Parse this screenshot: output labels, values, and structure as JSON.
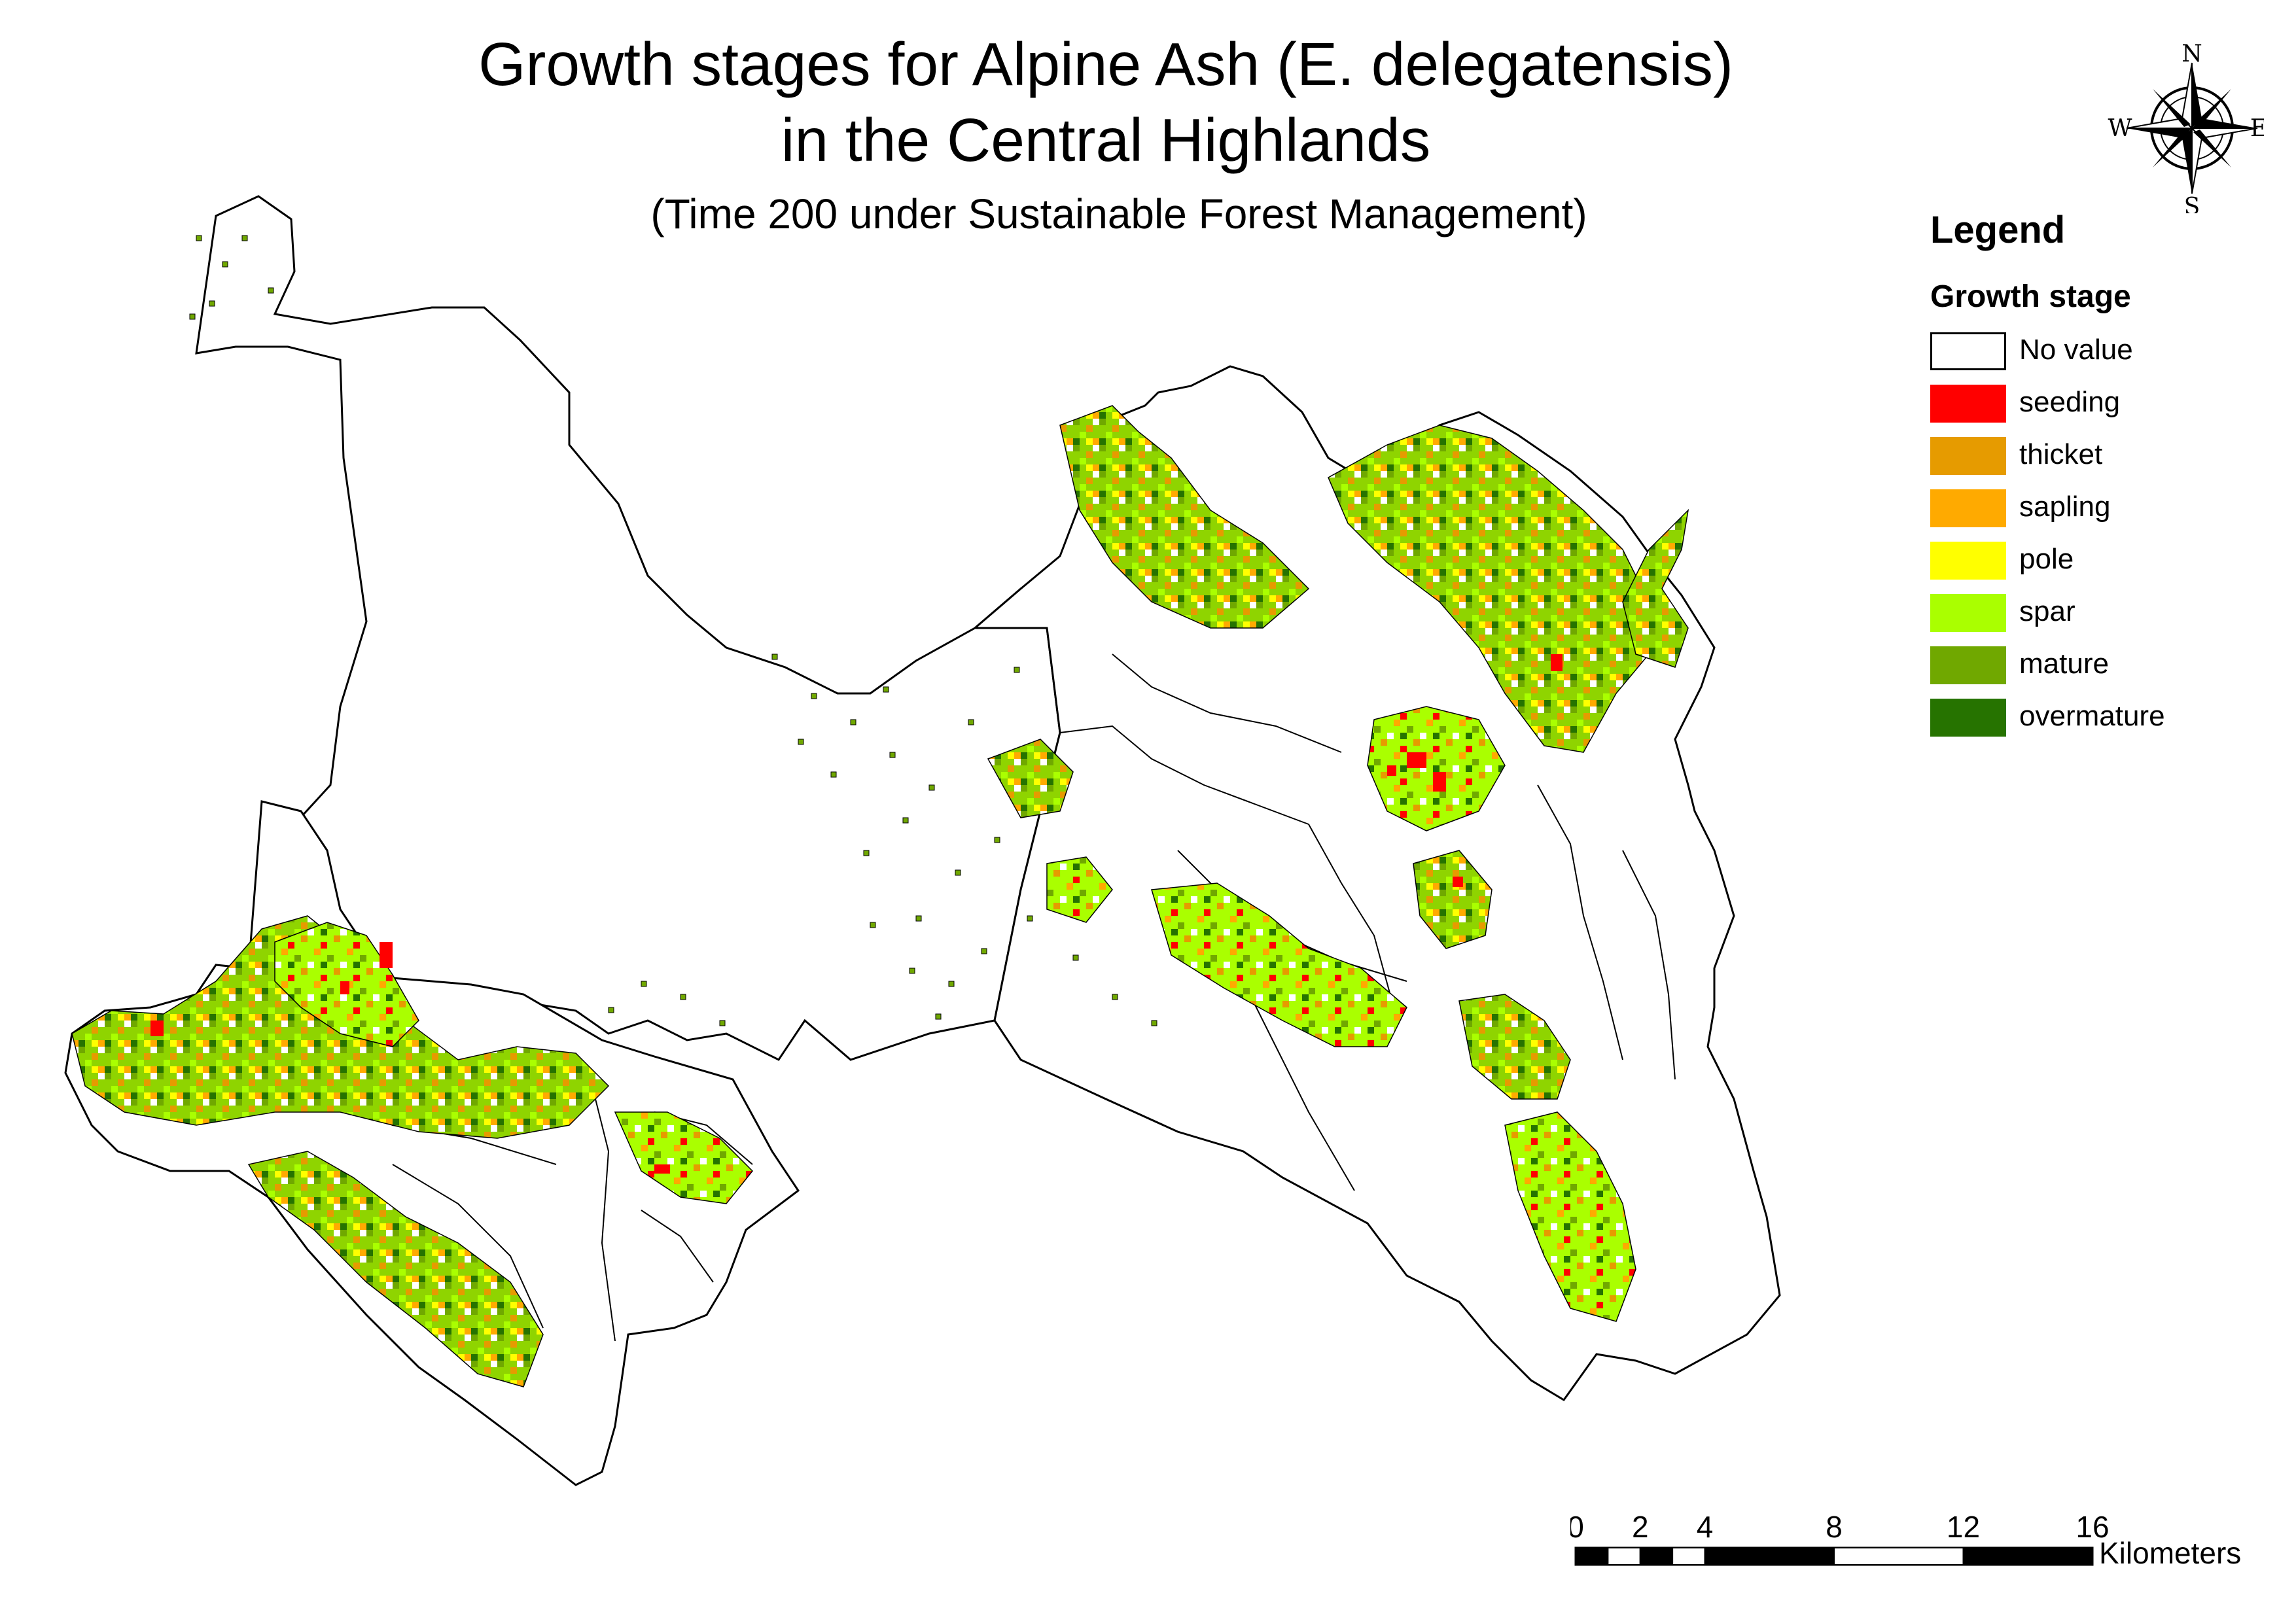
{
  "title_line1": "Growth stages for Alpine Ash (E. delegatensis)",
  "title_line2": "in the Central Highlands",
  "subtitle": "(Time 200  under Sustainable Forest Management)",
  "legend": {
    "title": "Legend",
    "subtitle": "Growth stage",
    "items": [
      {
        "label": "No value",
        "color": "#ffffff"
      },
      {
        "label": "seeding",
        "color": "#ff0000"
      },
      {
        "label": "thicket",
        "color": "#e69b00"
      },
      {
        "label": "sapling",
        "color": "#ffaa00"
      },
      {
        "label": "pole",
        "color": "#ffff00"
      },
      {
        "label": "spar",
        "color": "#aaff00"
      },
      {
        "label": "mature",
        "color": "#70a800"
      },
      {
        "label": "overmature",
        "color": "#267300"
      }
    ]
  },
  "compass": {
    "n": "N",
    "s": "S",
    "e": "E",
    "w": "W"
  },
  "scale": {
    "ticks": [
      "0",
      "2",
      "4",
      "8",
      "12",
      "16"
    ],
    "unit": "Kilometers"
  },
  "map_icons": [
    "north-arrow-icon"
  ]
}
